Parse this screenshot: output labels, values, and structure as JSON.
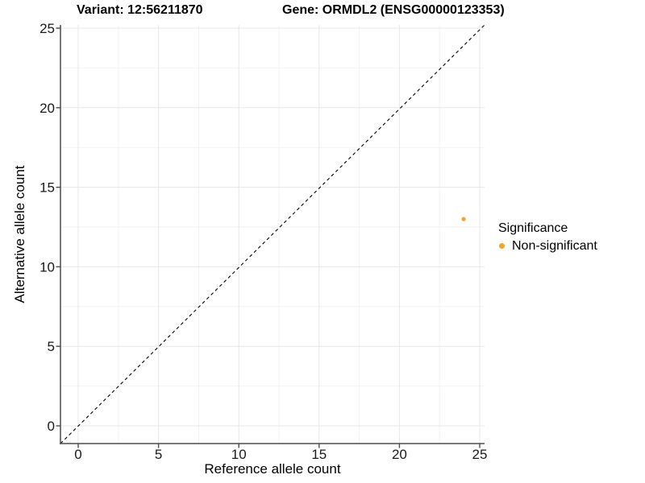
{
  "title_left": "Variant: 12:56211870",
  "title_right": "Gene: ORMDL2 (ENSG00000123353)",
  "axis": {
    "x_label": "Reference allele count",
    "y_label": "Alternative allele count"
  },
  "legend": {
    "title": "Significance",
    "items": [
      {
        "label": "Non-significant",
        "color": "#F9A229"
      }
    ]
  },
  "colors": {
    "point": "#F9A229",
    "axis_line": "#4D4D4D",
    "major_grid": "#E7E7E7",
    "minor_grid": "#F2F2F2",
    "reference_line": "#000000"
  },
  "chart_data": {
    "type": "scatter",
    "title": "Variant: 12:56211870 — Gene: ORMDL2 (ENSG00000123353)",
    "xlabel": "Reference allele count",
    "ylabel": "Alternative allele count",
    "xlim": [
      0,
      25
    ],
    "ylim": [
      0,
      25
    ],
    "x_ticks": [
      0,
      5,
      10,
      15,
      20,
      25
    ],
    "y_ticks": [
      0,
      5,
      10,
      15,
      20,
      25
    ],
    "grid": "major+minor",
    "legend_position": "right",
    "reference_line": {
      "kind": "identity y=x",
      "style": "dashed",
      "color": "#000000"
    },
    "series": [
      {
        "name": "Non-significant",
        "color": "#F9A229",
        "points": [
          {
            "x": 24,
            "y": 13
          }
        ]
      }
    ]
  }
}
